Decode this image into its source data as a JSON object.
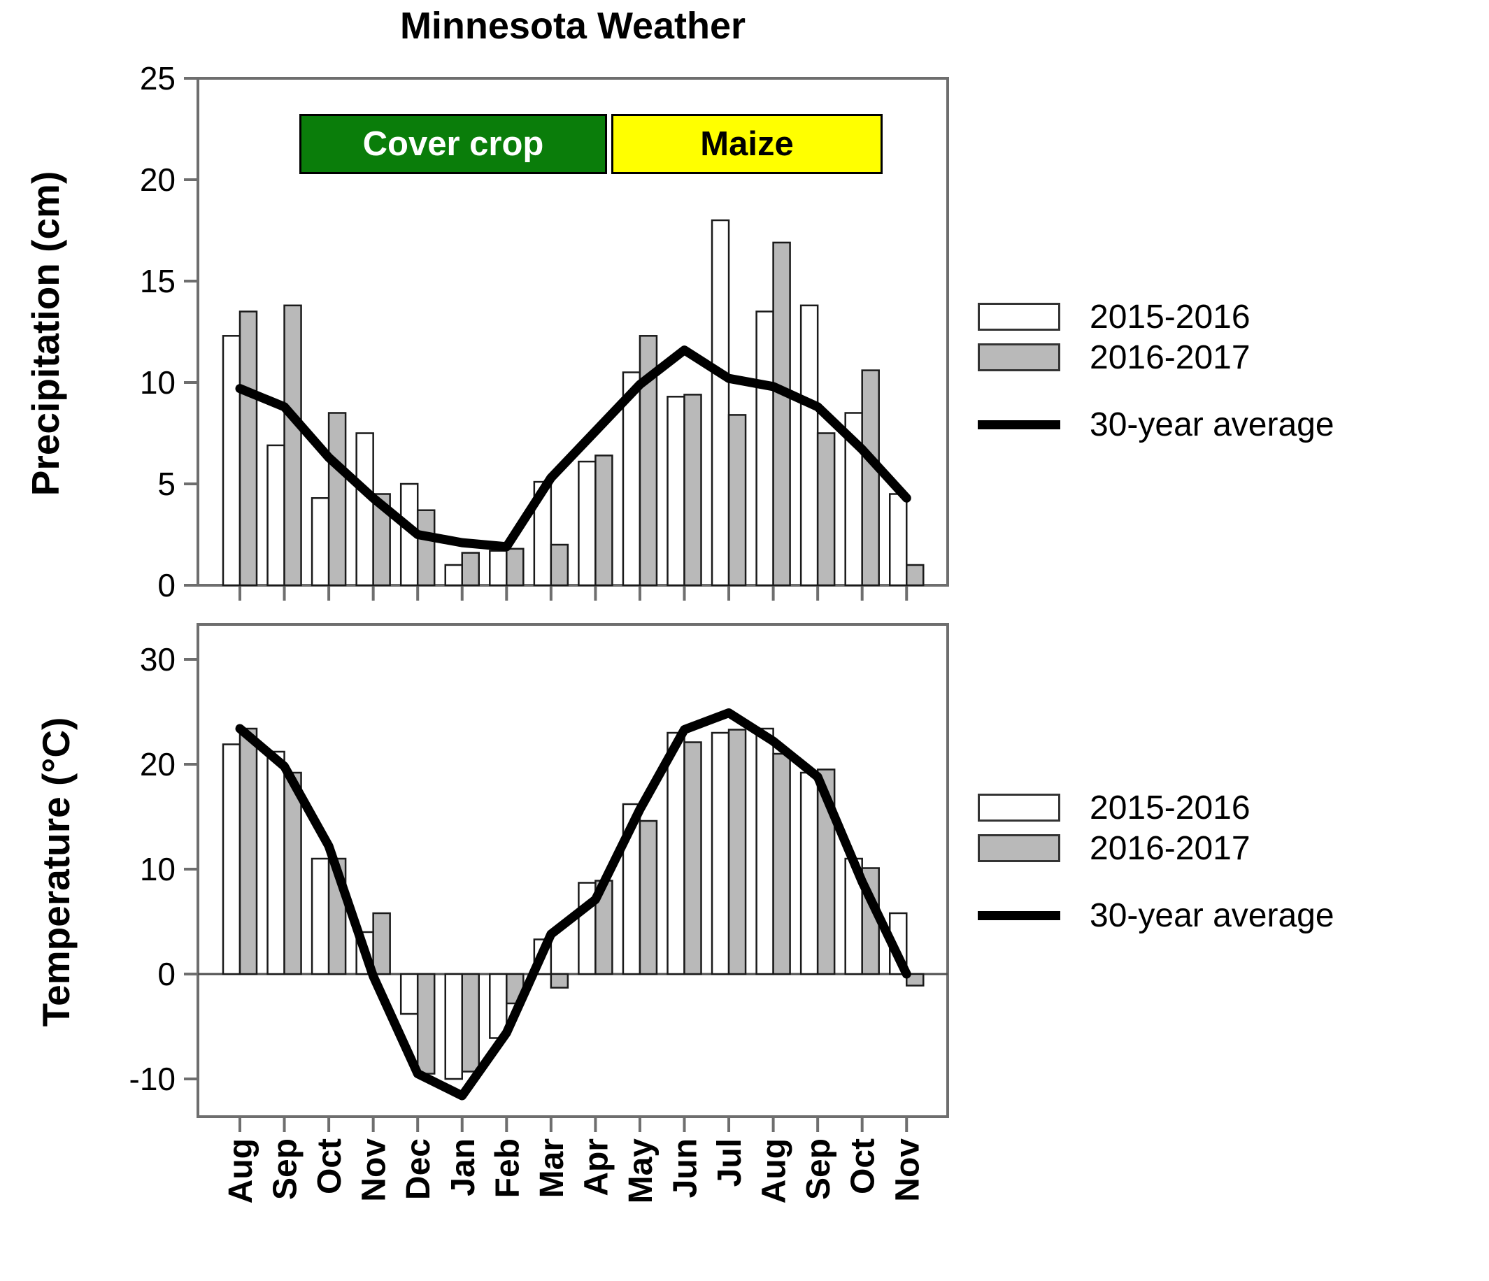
{
  "page": {
    "background": "#ffffff"
  },
  "chart_data": [
    {
      "type": "bar-line",
      "title": "Minnesota Weather",
      "ylabel": "Precipitation (cm)",
      "xlabel": "",
      "ylim": [
        0,
        25
      ],
      "yticks": [
        0,
        5,
        10,
        15,
        20,
        25
      ],
      "grid": false,
      "legend_position": "right",
      "categories": [
        "Aug",
        "Sep",
        "Oct",
        "Nov",
        "Dec",
        "Jan",
        "Feb",
        "Mar",
        "Apr",
        "May",
        "Jun",
        "Jul",
        "Aug",
        "Sep",
        "Oct",
        "Nov"
      ],
      "series": [
        {
          "name": "2015-2016",
          "type": "bar",
          "color": "#ffffff",
          "values": [
            12.3,
            6.9,
            4.3,
            7.5,
            5.0,
            1.0,
            1.7,
            5.1,
            6.1,
            10.5,
            9.3,
            18.0,
            13.5,
            13.8,
            8.5,
            4.5
          ]
        },
        {
          "name": "2016-2017",
          "type": "bar",
          "color": "#b9b9b9",
          "values": [
            13.5,
            13.8,
            8.5,
            4.5,
            3.7,
            1.6,
            1.8,
            2.0,
            6.4,
            12.3,
            9.4,
            8.4,
            16.9,
            7.5,
            10.6,
            1.0
          ]
        },
        {
          "name": "30-year average",
          "type": "line",
          "color": "#000000",
          "values": [
            9.7,
            8.8,
            6.3,
            4.3,
            2.5,
            2.1,
            1.9,
            5.3,
            7.6,
            9.9,
            11.6,
            10.2,
            9.8,
            8.8,
            6.7,
            4.3
          ]
        }
      ],
      "annotations": [
        {
          "label": "Cover crop",
          "bg": "#0a7d0a",
          "text_color": "#ffffff"
        },
        {
          "label": "Maize",
          "bg": "#ffff00",
          "text_color": "#000000"
        }
      ]
    },
    {
      "type": "bar-line",
      "title": "",
      "ylabel": "Temperature (°C)",
      "xlabel": "",
      "ylim": [
        -13.6,
        33.3
      ],
      "yticks": [
        30,
        20,
        10,
        0,
        -10
      ],
      "zero_line": true,
      "grid": false,
      "legend_position": "right",
      "categories": [
        "Aug",
        "Sep",
        "Oct",
        "Nov",
        "Dec",
        "Jan",
        "Feb",
        "Mar",
        "Apr",
        "May",
        "Jun",
        "Jul",
        "Aug",
        "Sep",
        "Oct",
        "Nov"
      ],
      "series": [
        {
          "name": "2015-2016",
          "type": "bar",
          "color": "#ffffff",
          "values": [
            21.9,
            21.2,
            11.0,
            4.0,
            -3.8,
            -10.0,
            -6.1,
            3.3,
            8.7,
            16.2,
            23.0,
            23.0,
            23.4,
            19.2,
            11.0,
            5.8
          ]
        },
        {
          "name": "2016-2017",
          "type": "bar",
          "color": "#b9b9b9",
          "values": [
            23.4,
            19.2,
            11.0,
            5.8,
            -9.5,
            -9.3,
            -2.8,
            -1.3,
            8.9,
            14.6,
            22.1,
            23.3,
            21.0,
            19.5,
            10.1,
            -1.1
          ]
        },
        {
          "name": "30-year average",
          "type": "line",
          "color": "#000000",
          "values": [
            23.4,
            19.8,
            12.2,
            -0.2,
            -9.5,
            -11.6,
            -5.6,
            3.8,
            7.1,
            15.7,
            23.3,
            24.9,
            22.2,
            18.8,
            8.8,
            0.0
          ]
        }
      ]
    }
  ],
  "legend": {
    "items": [
      {
        "label": "2015-2016",
        "swatch": "white-bar",
        "color": "#ffffff"
      },
      {
        "label": "2016-2017",
        "swatch": "gray-bar",
        "color": "#b9b9b9"
      },
      {
        "label": "30-year average",
        "swatch": "thick-line",
        "color": "#000000"
      }
    ]
  }
}
